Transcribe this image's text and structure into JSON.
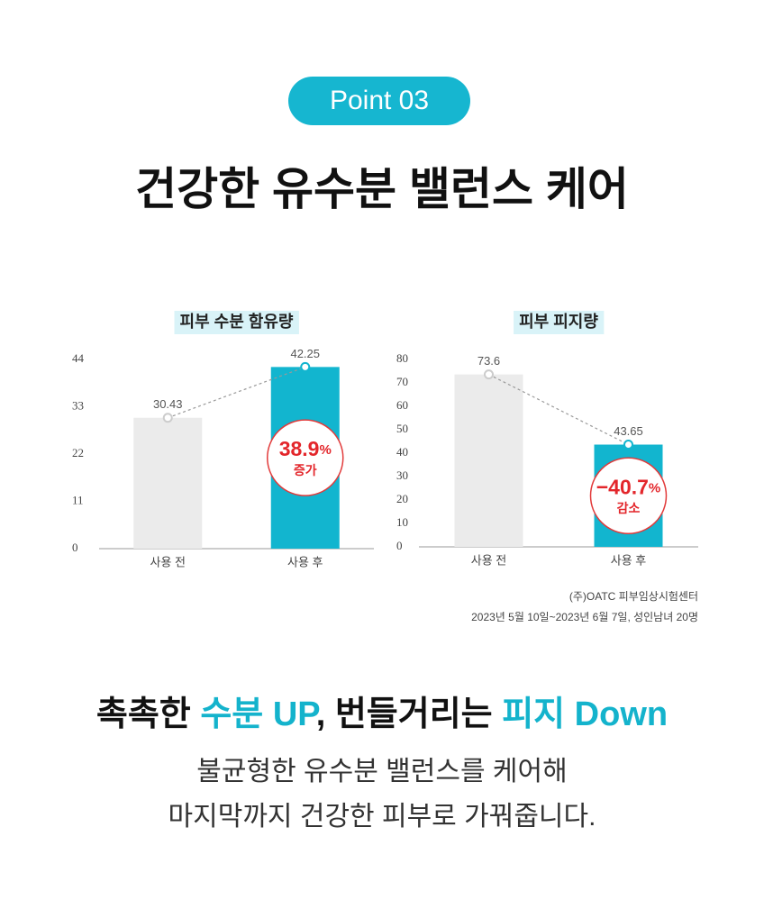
{
  "badge": "Point 03",
  "title": "건강한 유수분 밸런스 케어",
  "chart_data": [
    {
      "type": "bar",
      "title": "피부 수분 함유량",
      "categories": [
        "사용 전",
        "사용 후"
      ],
      "values": [
        30.43,
        42.25
      ],
      "colors": [
        "#ebebeb",
        "#12b5cf"
      ],
      "ylim": [
        0,
        44
      ],
      "yticks": [
        0,
        11,
        22,
        33,
        44
      ],
      "change": {
        "value": "38.9",
        "unit": "%",
        "label": "증가"
      }
    },
    {
      "type": "bar",
      "title": "피부 피지량",
      "categories": [
        "사용 전",
        "사용 후"
      ],
      "values": [
        73.6,
        43.65
      ],
      "colors": [
        "#ebebeb",
        "#12b5cf"
      ],
      "ylim": [
        0,
        80
      ],
      "yticks": [
        0,
        10,
        20,
        30,
        40,
        50,
        60,
        70,
        80
      ],
      "change": {
        "value": "−40.7",
        "unit": "%",
        "label": "감소"
      }
    }
  ],
  "source": [
    "(주)OATC 피부임상시험센터",
    "2023년 5월 10일~2023년 6월 7일, 성인남녀 20명"
  ],
  "headline": [
    "촉촉한 ",
    "수분 UP",
    ", 번들거리는 ",
    "피지 Down"
  ],
  "body": [
    "불균형한 유수분 밸런스를 케어해",
    "마지막까지 건강한 피부로 가꿔줍니다."
  ]
}
